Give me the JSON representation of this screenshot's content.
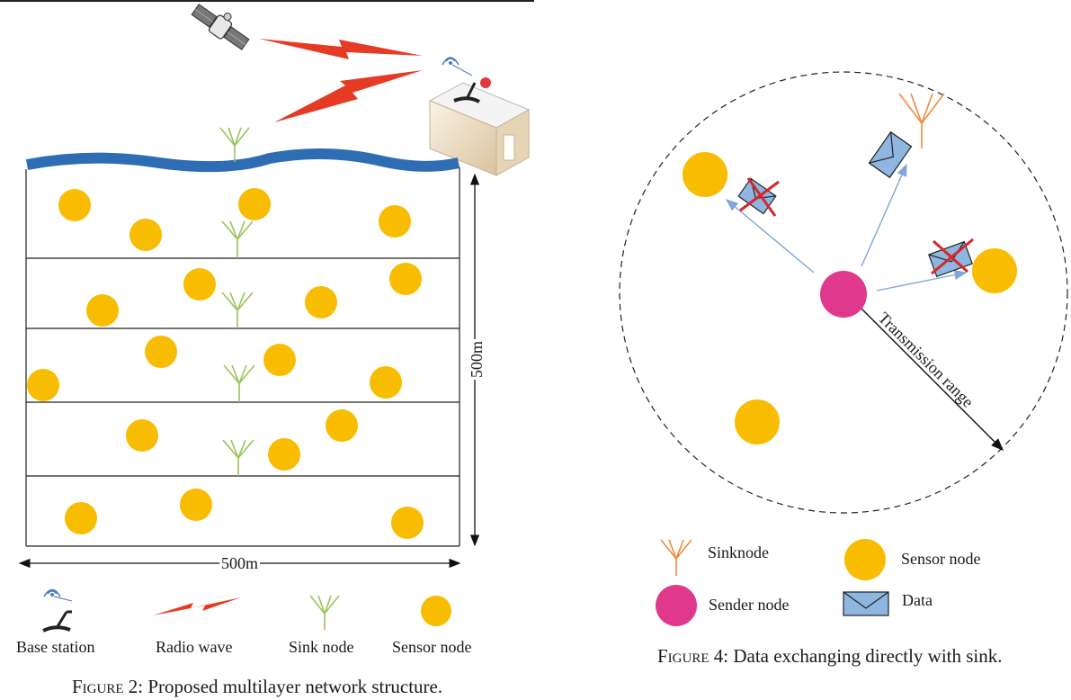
{
  "figure2": {
    "caption_prefix": "Figure 2:",
    "caption_text": " Proposed multilayer network structure.",
    "width_label": "500m",
    "height_label": "500m",
    "legend": {
      "base_station": "Base station",
      "radio_wave": "Radio wave",
      "sink_node": "Sink node",
      "sensor_node": "Sensor node"
    }
  },
  "figure4": {
    "caption_prefix": "Figure 4:",
    "caption_text": " Data exchanging directly with sink.",
    "range_label": "Transmission range",
    "legend": {
      "sinknode": "Sinknode",
      "sensor_node": "Sensor node",
      "sender_node": "Sender node",
      "data": "Data"
    }
  },
  "colors": {
    "sensor": "#f8bc00",
    "sender": "#e0388c",
    "sink_fig2": "#9ac45a",
    "sink_fig4": "#f08a3c",
    "water": "#2e6db4",
    "radio": "#e53a24",
    "envelope": "#8fb6e0",
    "arrow": "#7ea6d6",
    "cross": "#d8262a"
  }
}
